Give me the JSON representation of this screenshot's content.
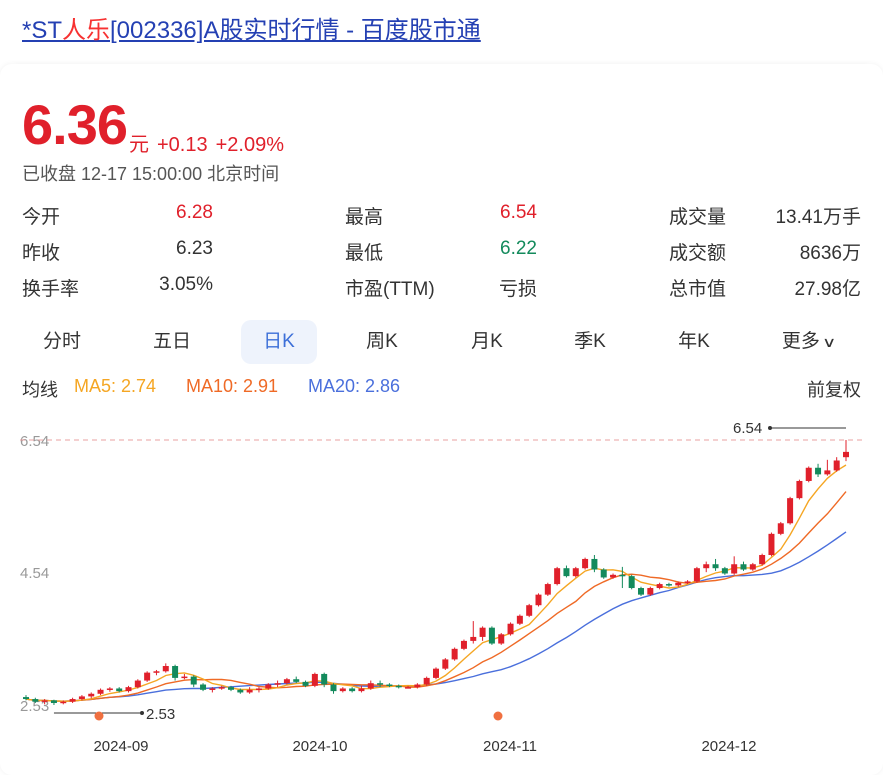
{
  "page": {
    "title_prefix": "*ST",
    "title_highlight": "人乐",
    "title_suffix": "[002336]A股实时行情 - 百度股市通"
  },
  "quote": {
    "price": "6.36",
    "unit": "元",
    "change": "+0.13",
    "change_pct": "+2.09%",
    "status": "已收盘 12-17 15:00:00 北京时间"
  },
  "stats": [
    {
      "label": "今开",
      "value": "6.28"
    },
    {
      "label": "最高",
      "value": "6.54"
    },
    {
      "label": "成交量",
      "value": "13.41万手"
    },
    {
      "label": "昨收",
      "value": "6.23"
    },
    {
      "label": "最低",
      "value": "6.22"
    },
    {
      "label": "成交额",
      "value": "8636万"
    },
    {
      "label": "换手率",
      "value": "3.05%"
    },
    {
      "label": "市盈(TTM)",
      "value": "亏损"
    },
    {
      "label": "总市值",
      "value": "27.98亿"
    }
  ],
  "tabs": [
    "分时",
    "五日",
    "日K",
    "周K",
    "月K",
    "季K",
    "年K",
    "更多"
  ],
  "active_tab": "日K",
  "ma": {
    "label": "均线",
    "ma5": "MA5: 2.74",
    "ma10": "MA10: 2.91",
    "ma20": "MA20: 2.86",
    "adjust": "前复权"
  },
  "colors": {
    "up": "#e0202b",
    "down": "#138a5c",
    "ma5": "#f5a623",
    "ma10": "#ef6a26",
    "ma20": "#4a6fdc",
    "link": "#2440b3",
    "active_tab": "#3c6fd8"
  },
  "chart_data": {
    "type": "candlestick",
    "y_ticks": [
      "6.54",
      "4.54",
      "2.53"
    ],
    "x_ticks": [
      "2024-09",
      "2024-10",
      "2024-11",
      "2024-12"
    ],
    "ylim": [
      2.53,
      6.54
    ],
    "high_marker": "6.54",
    "low_marker": "2.53",
    "candles": [
      [
        2.65,
        2.62,
        2.68,
        2.6
      ],
      [
        2.62,
        2.58,
        2.64,
        2.56
      ],
      [
        2.58,
        2.6,
        2.62,
        2.54
      ],
      [
        2.6,
        2.56,
        2.61,
        2.53
      ],
      [
        2.56,
        2.58,
        2.6,
        2.54
      ],
      [
        2.58,
        2.62,
        2.64,
        2.56
      ],
      [
        2.62,
        2.66,
        2.68,
        2.6
      ],
      [
        2.66,
        2.7,
        2.72,
        2.63
      ],
      [
        2.7,
        2.76,
        2.78,
        2.68
      ],
      [
        2.76,
        2.78,
        2.8,
        2.73
      ],
      [
        2.78,
        2.74,
        2.8,
        2.72
      ],
      [
        2.74,
        2.8,
        2.82,
        2.72
      ],
      [
        2.8,
        2.9,
        2.92,
        2.78
      ],
      [
        2.9,
        3.02,
        3.04,
        2.88
      ],
      [
        3.02,
        3.04,
        3.06,
        2.98
      ],
      [
        3.04,
        3.12,
        3.16,
        3.02
      ],
      [
        3.12,
        2.94,
        3.14,
        2.9
      ],
      [
        2.94,
        2.96,
        3.0,
        2.92
      ],
      [
        2.96,
        2.84,
        2.98,
        2.8
      ],
      [
        2.84,
        2.76,
        2.86,
        2.74
      ],
      [
        2.76,
        2.78,
        2.8,
        2.72
      ],
      [
        2.78,
        2.8,
        2.82,
        2.76
      ],
      [
        2.8,
        2.76,
        2.82,
        2.74
      ],
      [
        2.76,
        2.72,
        2.78,
        2.7
      ],
      [
        2.72,
        2.76,
        2.8,
        2.7
      ],
      [
        2.76,
        2.78,
        2.8,
        2.72
      ],
      [
        2.78,
        2.84,
        2.86,
        2.76
      ],
      [
        2.84,
        2.86,
        2.9,
        2.8
      ],
      [
        2.86,
        2.92,
        2.94,
        2.84
      ],
      [
        2.92,
        2.88,
        2.96,
        2.86
      ],
      [
        2.88,
        2.82,
        2.9,
        2.8
      ],
      [
        2.82,
        3.0,
        3.02,
        2.8
      ],
      [
        3.0,
        2.84,
        3.02,
        2.8
      ],
      [
        2.84,
        2.74,
        2.86,
        2.7
      ],
      [
        2.74,
        2.78,
        2.8,
        2.72
      ],
      [
        2.78,
        2.74,
        2.8,
        2.72
      ],
      [
        2.74,
        2.78,
        2.82,
        2.72
      ],
      [
        2.78,
        2.86,
        2.9,
        2.76
      ],
      [
        2.86,
        2.84,
        2.9,
        2.8
      ],
      [
        2.84,
        2.82,
        2.86,
        2.8
      ],
      [
        2.82,
        2.8,
        2.84,
        2.78
      ],
      [
        2.8,
        2.8,
        2.82,
        2.78
      ],
      [
        2.8,
        2.84,
        2.86,
        2.78
      ],
      [
        2.84,
        2.94,
        2.96,
        2.82
      ],
      [
        2.94,
        3.08,
        3.1,
        2.92
      ],
      [
        3.08,
        3.22,
        3.24,
        3.06
      ],
      [
        3.22,
        3.38,
        3.4,
        3.2
      ],
      [
        3.38,
        3.5,
        3.52,
        3.36
      ],
      [
        3.5,
        3.56,
        3.8,
        3.46
      ],
      [
        3.56,
        3.7,
        3.72,
        3.5
      ],
      [
        3.7,
        3.46,
        3.72,
        3.44
      ],
      [
        3.46,
        3.6,
        3.62,
        3.44
      ],
      [
        3.6,
        3.76,
        3.78,
        3.58
      ],
      [
        3.76,
        3.88,
        3.9,
        3.74
      ],
      [
        3.88,
        4.04,
        4.06,
        3.86
      ],
      [
        4.04,
        4.2,
        4.22,
        4.02
      ],
      [
        4.2,
        4.36,
        4.38,
        4.18
      ],
      [
        4.36,
        4.6,
        4.62,
        4.34
      ],
      [
        4.6,
        4.48,
        4.64,
        4.46
      ],
      [
        4.48,
        4.6,
        4.62,
        4.46
      ],
      [
        4.6,
        4.74,
        4.76,
        4.58
      ],
      [
        4.74,
        4.58,
        4.8,
        4.54
      ],
      [
        4.58,
        4.46,
        4.6,
        4.44
      ],
      [
        4.46,
        4.5,
        4.52,
        4.44
      ],
      [
        4.5,
        4.48,
        4.62,
        4.3
      ],
      [
        4.48,
        4.3,
        4.5,
        4.28
      ],
      [
        4.3,
        4.2,
        4.32,
        4.18
      ],
      [
        4.2,
        4.3,
        4.32,
        4.18
      ],
      [
        4.3,
        4.36,
        4.38,
        4.28
      ],
      [
        4.36,
        4.34,
        4.38,
        4.32
      ],
      [
        4.34,
        4.38,
        4.4,
        4.32
      ],
      [
        4.38,
        4.4,
        4.42,
        4.36
      ],
      [
        4.4,
        4.6,
        4.62,
        4.38
      ],
      [
        4.6,
        4.66,
        4.7,
        4.54
      ],
      [
        4.66,
        4.6,
        4.74,
        4.56
      ],
      [
        4.6,
        4.52,
        4.62,
        4.5
      ],
      [
        4.52,
        4.66,
        4.78,
        4.5
      ],
      [
        4.66,
        4.58,
        4.7,
        4.56
      ],
      [
        4.58,
        4.66,
        4.68,
        4.56
      ],
      [
        4.66,
        4.8,
        4.82,
        4.64
      ],
      [
        4.8,
        5.12,
        5.14,
        4.78
      ],
      [
        5.12,
        5.28,
        5.3,
        5.1
      ],
      [
        5.28,
        5.66,
        5.68,
        5.26
      ],
      [
        5.66,
        5.92,
        5.94,
        5.64
      ],
      [
        5.92,
        6.12,
        6.14,
        5.9
      ],
      [
        6.12,
        6.02,
        6.18,
        5.98
      ],
      [
        6.02,
        6.08,
        6.24,
        6.0
      ],
      [
        6.08,
        6.23,
        6.28,
        6.06
      ],
      [
        6.28,
        6.36,
        6.54,
        6.22
      ]
    ]
  }
}
